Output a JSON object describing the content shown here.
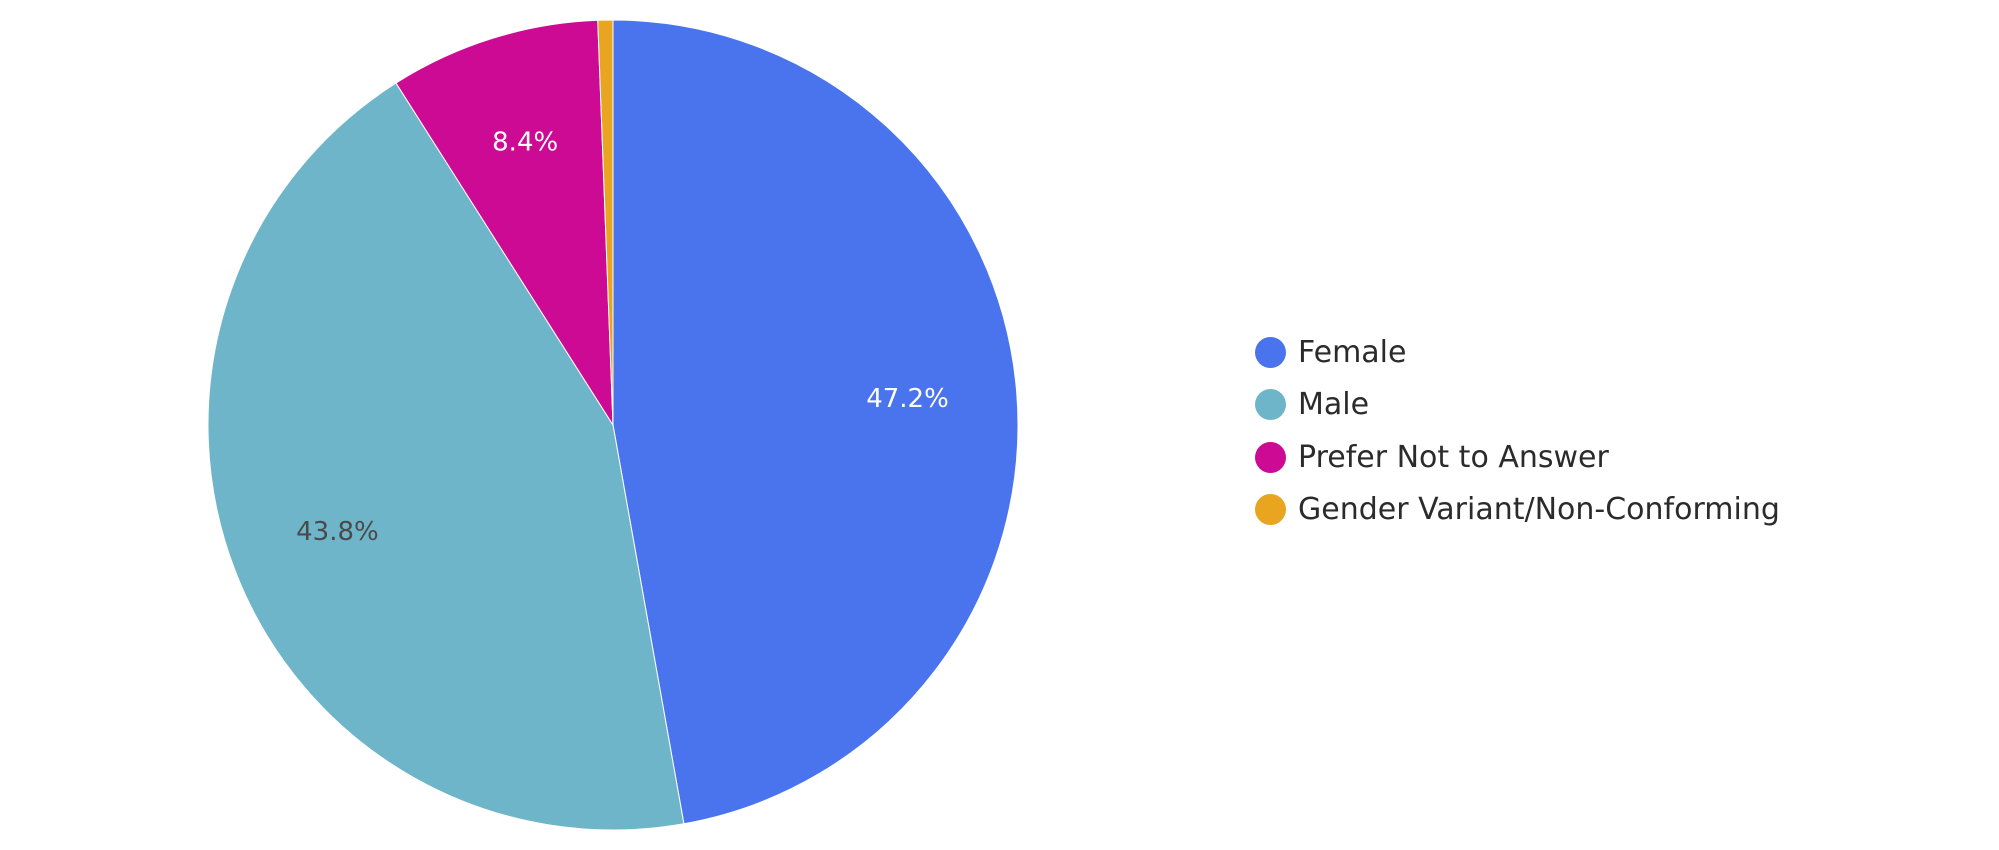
{
  "chart_data": {
    "type": "pie",
    "title": "",
    "slices": [
      {
        "label": "Female",
        "value": 47.2,
        "display": "47.2%",
        "color": "#4A74EE",
        "label_color": "#ffffff"
      },
      {
        "label": "Male",
        "value": 43.8,
        "display": "43.8%",
        "color": "#6EB5CA",
        "label_color": "#4a4a4a"
      },
      {
        "label": "Prefer Not to Answer",
        "value": 8.4,
        "display": "8.4%",
        "color": "#CC0A94",
        "label_color": "#ffffff"
      },
      {
        "label": "Gender Variant/Non-Conforming",
        "value": 0.6,
        "display": "",
        "color": "#E9A520",
        "label_color": "#ffffff"
      }
    ],
    "legend_position": "right"
  },
  "legend": {
    "items": [
      {
        "label": "Female",
        "color": "#4A74EE"
      },
      {
        "label": "Male",
        "color": "#6EB5CA"
      },
      {
        "label": "Prefer Not to Answer",
        "color": "#CC0A94"
      },
      {
        "label": "Gender Variant/Non-Conforming",
        "color": "#E9A520"
      }
    ]
  }
}
